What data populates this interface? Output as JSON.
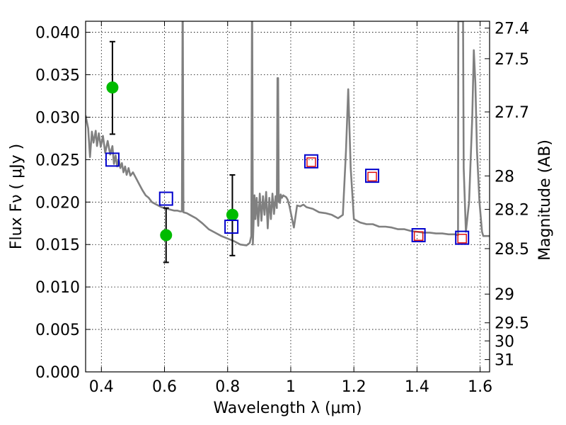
{
  "chart_data": {
    "type": "scatter",
    "title": "",
    "xlabel": "Wavelength  λ (μm)",
    "ylabel": "Flux  Fν  ( μJy )",
    "ylabel_right": "Magnitude (AB)",
    "xlim": [
      0.35,
      1.63
    ],
    "ylim": [
      0.0,
      0.0413
    ],
    "grid": true,
    "x_ticks": [
      0.4,
      0.6,
      0.8,
      1.0,
      1.2,
      1.4,
      1.6
    ],
    "x_tick_labels": [
      "0.4",
      "0.6",
      "0.8",
      "1",
      "1.2",
      "1.4",
      "1.6"
    ],
    "y_ticks": [
      0.0,
      0.005,
      0.01,
      0.015,
      0.02,
      0.025,
      0.03,
      0.035,
      0.04
    ],
    "y_tick_labels": [
      "0.000",
      "0.005",
      "0.010",
      "0.015",
      "0.020",
      "0.025",
      "0.030",
      "0.035",
      "0.040"
    ],
    "right_ticks": [
      {
        "flux": 0.04049,
        "label": "27.4"
      },
      {
        "flux": 0.03689,
        "label": "27.5"
      },
      {
        "flux": 0.03062,
        "label": "27.7"
      },
      {
        "flux": 0.02308,
        "label": "28"
      },
      {
        "flux": 0.01914,
        "label": "28.2"
      },
      {
        "flux": 0.01452,
        "label": "28.5"
      },
      {
        "flux": 0.00916,
        "label": "29"
      },
      {
        "flux": 0.00578,
        "label": "29.5"
      },
      {
        "flux": 0.00365,
        "label": "30"
      },
      {
        "flux": 0.00145,
        "label": "31"
      }
    ],
    "series": [
      {
        "kind": "line",
        "color": "#808080",
        "x": [
          0.35,
          0.358,
          0.364,
          0.37,
          0.375,
          0.382,
          0.386,
          0.392,
          0.398,
          0.405,
          0.412,
          0.42,
          0.428,
          0.435,
          0.44,
          0.445,
          0.45,
          0.455,
          0.46,
          0.465,
          0.47,
          0.475,
          0.48,
          0.486,
          0.492,
          0.5,
          0.51,
          0.52,
          0.53,
          0.54,
          0.55,
          0.56,
          0.57,
          0.58,
          0.59,
          0.6,
          0.61,
          0.62,
          0.63,
          0.64,
          0.65,
          0.655,
          0.657,
          0.658,
          0.66,
          0.67,
          0.68,
          0.7,
          0.72,
          0.74,
          0.76,
          0.78,
          0.8,
          0.82,
          0.84,
          0.86,
          0.87,
          0.875,
          0.877,
          0.878,
          0.88,
          0.885,
          0.888,
          0.892,
          0.897,
          0.902,
          0.907,
          0.912,
          0.917,
          0.922,
          0.927,
          0.932,
          0.937,
          0.942,
          0.947,
          0.952,
          0.956,
          0.958,
          0.96,
          0.962,
          0.964,
          0.966,
          0.968,
          0.972,
          0.976,
          0.98,
          0.985,
          0.99,
          0.996,
          1.002,
          1.01,
          1.02,
          1.03,
          1.04,
          1.05,
          1.07,
          1.09,
          1.11,
          1.13,
          1.15,
          1.165,
          1.175,
          1.182,
          1.19,
          1.2,
          1.22,
          1.24,
          1.26,
          1.28,
          1.3,
          1.32,
          1.34,
          1.36,
          1.38,
          1.4,
          1.42,
          1.44,
          1.46,
          1.48,
          1.5,
          1.52,
          1.53,
          1.531,
          1.535,
          1.54,
          1.545,
          1.546,
          1.548,
          1.555,
          1.565,
          1.575,
          1.58,
          1.585,
          1.59,
          1.598,
          1.606,
          1.61,
          1.62,
          1.63
        ],
        "y": [
          0.0302,
          0.0287,
          0.0253,
          0.0283,
          0.027,
          0.0284,
          0.0266,
          0.0281,
          0.0265,
          0.0278,
          0.0258,
          0.0272,
          0.0256,
          0.0266,
          0.0245,
          0.0255,
          0.0242,
          0.025,
          0.024,
          0.0246,
          0.0235,
          0.0242,
          0.0232,
          0.024,
          0.0231,
          0.0235,
          0.0228,
          0.0221,
          0.0214,
          0.0208,
          0.0205,
          0.02,
          0.0198,
          0.0196,
          0.0194,
          0.0193,
          0.0192,
          0.0191,
          0.019,
          0.019,
          0.0189,
          0.0189,
          0.0413,
          0.0413,
          0.0188,
          0.0187,
          0.0185,
          0.0181,
          0.0175,
          0.0168,
          0.0164,
          0.016,
          0.0157,
          0.0154,
          0.015,
          0.0149,
          0.0152,
          0.016,
          0.0413,
          0.0413,
          0.015,
          0.0208,
          0.018,
          0.0205,
          0.0172,
          0.021,
          0.0178,
          0.0207,
          0.0185,
          0.0212,
          0.0169,
          0.0205,
          0.018,
          0.021,
          0.0186,
          0.0207,
          0.0193,
          0.0346,
          0.0346,
          0.02,
          0.0205,
          0.0199,
          0.0209,
          0.0205,
          0.0208,
          0.0207,
          0.0206,
          0.0203,
          0.0195,
          0.0184,
          0.017,
          0.0196,
          0.0195,
          0.0197,
          0.0194,
          0.0192,
          0.0188,
          0.0187,
          0.0185,
          0.0181,
          0.0185,
          0.026,
          0.0333,
          0.024,
          0.018,
          0.0176,
          0.0174,
          0.0174,
          0.0171,
          0.0171,
          0.017,
          0.0168,
          0.0168,
          0.0166,
          0.0165,
          0.0164,
          0.0164,
          0.0163,
          0.0163,
          0.0162,
          0.0162,
          0.0161,
          0.0413,
          0.0413,
          0.0413,
          0.0413,
          0.0413,
          0.024,
          0.0165,
          0.02,
          0.03,
          0.0379,
          0.034,
          0.026,
          0.02,
          0.0165,
          0.016,
          0.016,
          0.016
        ]
      },
      {
        "kind": "points-with-errorbars",
        "marker": "circle",
        "color": "#00bb00",
        "x": [
          0.435,
          0.605,
          0.815
        ],
        "y": [
          0.0335,
          0.0161,
          0.0185
        ],
        "yerr_low": [
          0.028,
          0.0129,
          0.0137
        ],
        "yerr_high": [
          0.0389,
          0.0193,
          0.0232
        ]
      },
      {
        "kind": "points",
        "marker": "open-square",
        "color": "#0000cc",
        "x": [
          0.435,
          0.605,
          0.812,
          1.065,
          1.258,
          1.405,
          1.543
        ],
        "y": [
          0.025,
          0.0204,
          0.0171,
          0.0248,
          0.0231,
          0.0161,
          0.0158
        ]
      },
      {
        "kind": "points",
        "marker": "open-square-small",
        "color": "#dd1111",
        "x": [
          1.065,
          1.258,
          1.405,
          1.543
        ],
        "y": [
          0.0247,
          0.023,
          0.016,
          0.0157
        ]
      }
    ]
  }
}
